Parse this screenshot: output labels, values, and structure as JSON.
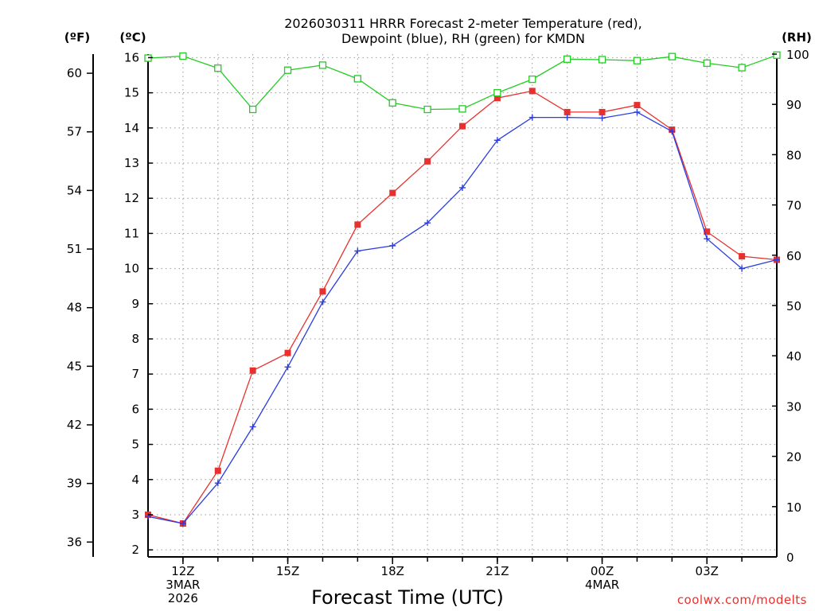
{
  "chart_data": {
    "type": "line",
    "title_lines": [
      "2026030311 HRRR Forecast 2-meter Temperature (red),",
      "Dewpoint (blue), RH (green) for KMDN"
    ],
    "xlabel": "Forecast Time (UTC)",
    "credit": "coolwx.com/modelts",
    "units": {
      "fahrenheit": "(ºF)",
      "celsius": "(ºC)",
      "rh": "(RH)"
    },
    "x_range": [
      11,
      29
    ],
    "x_ticks": [
      {
        "x": 12,
        "lines": [
          "12Z",
          "3MAR",
          "2026"
        ]
      },
      {
        "x": 15,
        "lines": [
          "15Z"
        ]
      },
      {
        "x": 18,
        "lines": [
          "18Z"
        ]
      },
      {
        "x": 21,
        "lines": [
          "21Z"
        ]
      },
      {
        "x": 24,
        "lines": [
          "00Z",
          "4MAR"
        ]
      },
      {
        "x": 27,
        "lines": [
          "03Z"
        ]
      }
    ],
    "y_celsius": {
      "range": [
        1.8,
        16.1
      ],
      "ticks": [
        2,
        3,
        4,
        5,
        6,
        7,
        8,
        9,
        10,
        11,
        12,
        13,
        14,
        15,
        16
      ]
    },
    "y_fahrenheit": {
      "ticks": [
        36,
        39,
        42,
        45,
        48,
        51,
        54,
        57,
        60
      ]
    },
    "y_rh": {
      "range": [
        0,
        100
      ],
      "ticks": [
        0,
        10,
        20,
        30,
        40,
        50,
        60,
        70,
        80,
        90,
        100
      ]
    },
    "hours": [
      11,
      12,
      13,
      14,
      15,
      16,
      17,
      18,
      19,
      20,
      21,
      22,
      23,
      24,
      25,
      26,
      27,
      28,
      29
    ],
    "series": [
      {
        "name": "Temperature",
        "unit": "C",
        "color": "#e8312f",
        "marker": "square",
        "values": [
          3.0,
          2.75,
          4.25,
          7.1,
          7.6,
          9.35,
          11.25,
          12.15,
          13.05,
          14.05,
          14.85,
          15.05,
          14.45,
          14.45,
          14.65,
          13.95,
          11.05,
          10.35,
          10.25
        ]
      },
      {
        "name": "Dewpoint",
        "unit": "C",
        "color": "#2a3de0",
        "marker": "plus",
        "values": [
          2.95,
          2.75,
          3.9,
          5.5,
          7.2,
          9.05,
          10.5,
          10.65,
          11.3,
          12.3,
          13.65,
          14.3,
          14.3,
          14.28,
          14.45,
          13.9,
          10.85,
          10.0,
          10.25
        ]
      },
      {
        "name": "RH",
        "unit": "%",
        "color": "#22cc22",
        "marker": "open-square",
        "values": [
          99.2,
          99.6,
          97.2,
          89.0,
          96.8,
          97.8,
          95.1,
          90.3,
          89.0,
          89.1,
          92.3,
          95.0,
          99.0,
          98.9,
          98.7,
          99.5,
          98.2,
          97.3,
          99.8
        ]
      }
    ]
  }
}
